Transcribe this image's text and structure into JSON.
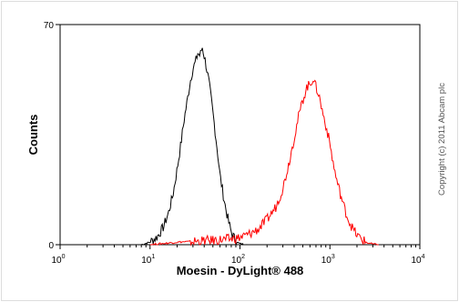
{
  "chart_data": {
    "type": "line",
    "xlabel": "Moesin - DyLight® 488",
    "ylabel": "Counts",
    "x_scale": "log",
    "xlim": [
      1,
      10000
    ],
    "ylim": [
      0,
      70
    ],
    "x_ticks": [
      {
        "base": "10",
        "exp": "0",
        "value": 1
      },
      {
        "base": "10",
        "exp": "1",
        "value": 10
      },
      {
        "base": "10",
        "exp": "2",
        "value": 100
      },
      {
        "base": "10",
        "exp": "3",
        "value": 1000
      },
      {
        "base": "10",
        "exp": "4",
        "value": 10000
      }
    ],
    "y_ticks": [
      {
        "label": "0",
        "value": 0
      },
      {
        "label": "70",
        "value": 70
      }
    ],
    "annotation": "Copyright (c) 2011 Abcam plc",
    "series": [
      {
        "color": "#000000",
        "x": [
          8,
          10,
          12,
          14,
          16,
          18,
          20,
          22,
          24,
          26,
          28,
          30,
          32,
          34,
          36,
          38,
          40,
          42,
          45,
          48,
          52,
          56,
          60,
          65,
          70,
          75,
          80,
          85,
          90,
          95,
          100,
          110,
          120
        ],
        "y": [
          0,
          0.8,
          2.5,
          5.5,
          10,
          16,
          24,
          32,
          40,
          46,
          52,
          56,
          58,
          61,
          60,
          63,
          60,
          57,
          52,
          46,
          38,
          30,
          22,
          16,
          11,
          7,
          4,
          2.5,
          1.2,
          0.6,
          0.3,
          0.1,
          0
        ]
      },
      {
        "color": "#ff0000",
        "x": [
          10,
          20,
          40,
          80,
          100,
          130,
          160,
          200,
          250,
          300,
          350,
          400,
          450,
          500,
          550,
          600,
          650,
          700,
          750,
          800,
          900,
          1000,
          1100,
          1200,
          1400,
          1600,
          1800,
          2000,
          2300,
          2600,
          3000,
          3500
        ],
        "y": [
          0,
          0.8,
          1.2,
          1.8,
          2.2,
          3.5,
          5,
          8,
          12,
          18,
          26,
          34,
          41,
          46,
          50,
          51,
          53,
          50,
          48,
          44,
          38,
          32,
          25,
          20,
          13,
          8,
          5,
          3,
          1.5,
          0.6,
          0.2,
          0
        ]
      }
    ]
  }
}
